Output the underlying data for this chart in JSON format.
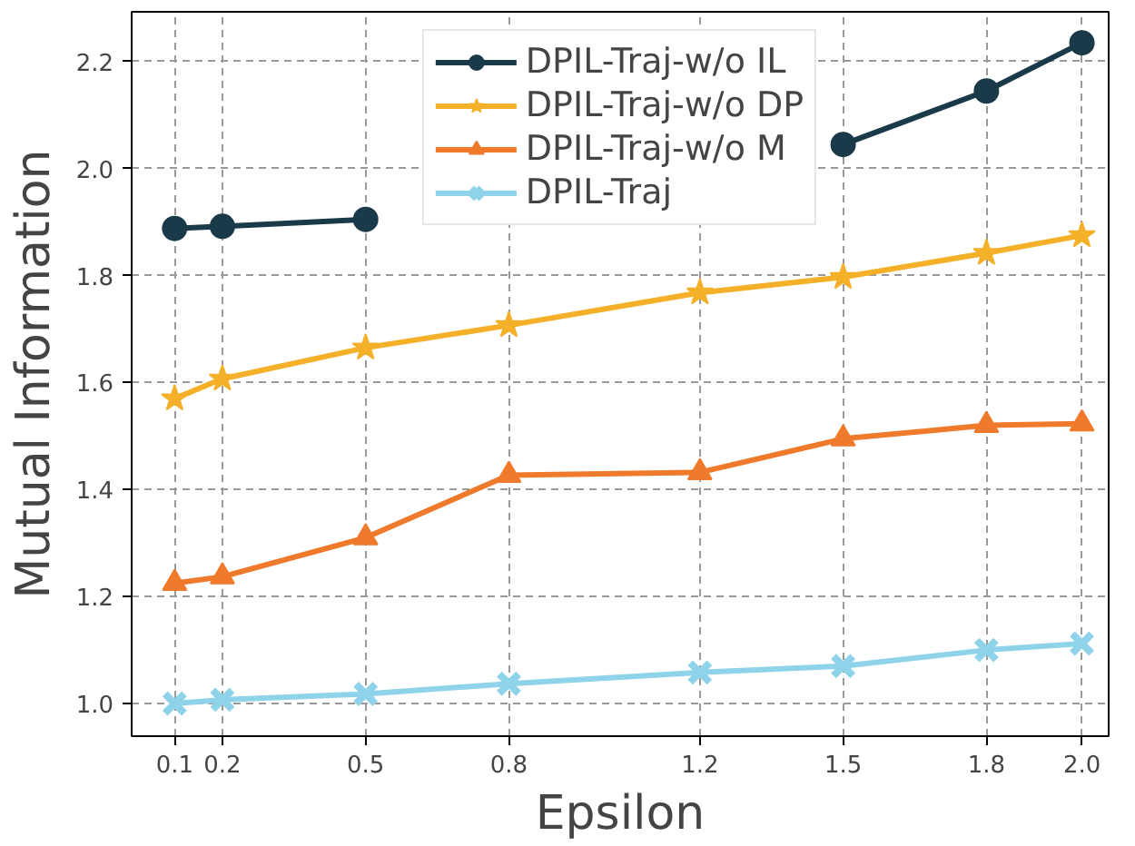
{
  "chart_data": {
    "type": "line",
    "xlabel": "Epsilon",
    "ylabel": "Mutual Information",
    "x": [
      0.1,
      0.2,
      0.5,
      0.8,
      1.2,
      1.5,
      1.8,
      2.0
    ],
    "xlim": [
      0.01,
      2.056
    ],
    "ylim": [
      0.939,
      2.293
    ],
    "xticks": [
      0.1,
      0.2,
      0.5,
      0.8,
      1.2,
      1.5,
      1.8,
      {
        "value": 2.0,
        "label": "2.0"
      }
    ],
    "yticks": [
      {
        "value": 1.0,
        "label": "1.0"
      },
      {
        "value": 1.2,
        "label": "1.2"
      },
      {
        "value": 1.4,
        "label": "1.4"
      },
      {
        "value": 1.6,
        "label": "1.6"
      },
      {
        "value": 1.8,
        "label": "1.8"
      },
      {
        "value": 2.0,
        "label": "2.0"
      },
      {
        "value": 2.2,
        "label": "2.2"
      }
    ],
    "grid": true,
    "legend": "top",
    "line_style": "solid",
    "series": [
      {
        "name": "DPIL-Traj-w/o IL",
        "color": "#1a3a4a",
        "marker": "circle",
        "values": [
          1.888,
          1.892,
          1.905,
          null,
          null,
          2.045,
          2.145,
          2.235
        ]
      },
      {
        "name": "DPIL-Traj-w/o DP",
        "color": "#f5b02a",
        "marker": "star",
        "values": [
          1.57,
          1.607,
          1.665,
          1.707,
          1.768,
          1.797,
          1.842,
          1.875
        ]
      },
      {
        "name": "DPIL-Traj-w/o M",
        "color": "#f07a2c",
        "marker": "triangle",
        "values": [
          1.225,
          1.237,
          1.31,
          1.427,
          1.432,
          1.495,
          1.52,
          1.523
        ]
      },
      {
        "name": "DPIL-Traj",
        "color": "#8fd3ea",
        "marker": "cross",
        "values": [
          1.0,
          1.007,
          1.018,
          1.037,
          1.058,
          1.07,
          1.1,
          1.112
        ]
      }
    ]
  }
}
